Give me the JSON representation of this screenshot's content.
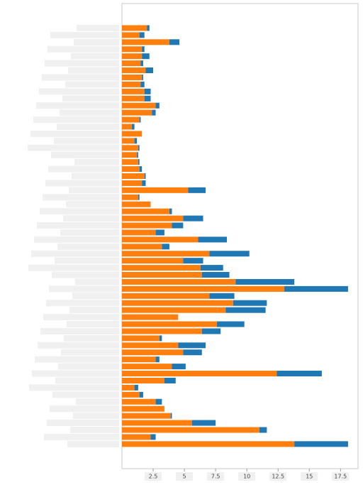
{
  "chart_data": {
    "type": "stacked-barh",
    "categories": [
      null,
      null,
      null,
      null,
      null,
      null,
      null,
      null,
      null,
      null,
      null,
      null,
      null,
      null,
      null,
      null,
      null,
      null,
      null,
      null,
      null,
      null,
      null,
      null,
      null,
      null,
      null,
      null,
      null,
      null,
      null,
      null,
      null,
      null,
      null,
      null,
      null,
      null,
      null,
      null,
      null,
      null,
      null,
      null,
      null,
      null,
      null,
      null,
      null,
      null,
      null,
      null,
      null,
      null,
      null,
      null,
      null,
      null,
      null,
      null
    ],
    "series": [
      {
        "color": "#ff7f0e",
        "values": [
          2.0,
          1.4,
          3.8,
          1.6,
          1.6,
          1.5,
          1.9,
          1.6,
          1.5,
          1.8,
          1.8,
          2.7,
          2.4,
          1.4,
          0.8,
          1.6,
          1.0,
          1.3,
          1.2,
          1.3,
          1.4,
          1.8,
          1.6,
          5.3,
          1.3,
          2.3,
          3.8,
          4.9,
          4.0,
          2.7,
          6.1,
          3.2,
          7.0,
          4.9,
          6.3,
          6.4,
          9.1,
          13.0,
          7.0,
          8.9,
          8.3,
          4.5,
          7.6,
          6.4,
          3.0,
          4.5,
          4.9,
          2.7,
          4.0,
          12.4,
          3.4,
          1.0,
          1.4,
          2.7,
          3.4,
          3.9,
          5.6,
          11.0,
          2.3,
          13.8
        ]
      },
      {
        "color": "#1f77b4",
        "values": [
          0.2,
          0.4,
          0.8,
          0.2,
          0.6,
          0.2,
          0.6,
          0.1,
          0.3,
          0.5,
          0.5,
          0.3,
          0.3,
          0.1,
          0.2,
          0,
          0.2,
          0.1,
          0.1,
          0.1,
          0.2,
          0.1,
          0.3,
          1.4,
          0.1,
          0,
          0.2,
          1.6,
          0.9,
          0.7,
          2.3,
          0.6,
          3.2,
          1.6,
          1.8,
          2.2,
          4.7,
          5.1,
          2.0,
          2.7,
          3.2,
          0,
          2.2,
          1.5,
          0.2,
          2.2,
          1.5,
          0.3,
          1.1,
          3.6,
          0.9,
          0.3,
          0.3,
          0.5,
          0,
          0.1,
          1.9,
          0.6,
          0.4,
          4.3
        ]
      }
    ],
    "xlim": [
      0,
      18.9
    ],
    "xticks": [
      2.5,
      5,
      7.5,
      10,
      12.5,
      15,
      17.5
    ]
  }
}
